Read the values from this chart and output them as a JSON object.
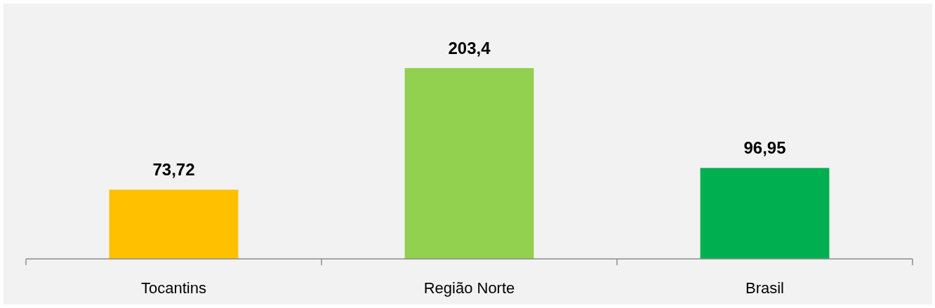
{
  "chart_data": {
    "type": "bar",
    "categories": [
      "Tocantins",
      "Região Norte",
      "Brasil"
    ],
    "values": [
      73.72,
      203.4,
      96.95
    ],
    "colors": [
      "#ffc000",
      "#92d050",
      "#00b050"
    ],
    "value_labels": [
      "73,72",
      "203,4",
      "96,95"
    ]
  }
}
